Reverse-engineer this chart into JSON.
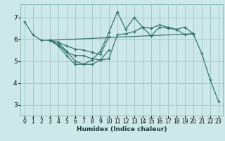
{
  "xlabel": "Humidex (Indice chaleur)",
  "bg_color": "#cce8e8",
  "grid_color": "#a8c8c8",
  "line_color": "#2d7068",
  "xlim": [
    -0.5,
    23.5
  ],
  "ylim": [
    2.5,
    7.6
  ],
  "xticks": [
    0,
    1,
    2,
    3,
    4,
    5,
    6,
    7,
    8,
    9,
    10,
    11,
    12,
    13,
    14,
    15,
    16,
    17,
    18,
    19,
    20,
    21,
    22,
    23
  ],
  "yticks": [
    3,
    4,
    5,
    6,
    7
  ],
  "lines": [
    {
      "x": [
        0,
        1,
        2,
        3,
        4,
        5,
        6,
        7,
        8,
        9,
        10,
        11,
        12,
        13,
        14,
        15,
        16,
        17,
        18,
        19,
        20,
        21,
        22,
        23
      ],
      "y": [
        6.8,
        6.2,
        5.95,
        5.95,
        5.85,
        5.45,
        5.0,
        4.85,
        5.05,
        5.45,
        6.3,
        7.25,
        6.45,
        7.0,
        6.55,
        6.15,
        6.55,
        6.5,
        6.45,
        6.2,
        6.25,
        5.35,
        4.15,
        3.15
      ]
    },
    {
      "x": [
        3,
        4,
        5,
        6,
        7,
        8,
        9,
        10,
        11,
        12,
        13,
        14,
        15,
        16,
        17,
        18,
        19,
        20
      ],
      "y": [
        5.95,
        5.75,
        5.4,
        5.25,
        5.25,
        5.1,
        5.05,
        5.1,
        6.2,
        6.25,
        6.35,
        6.55,
        6.5,
        6.65,
        6.55,
        6.45,
        6.55,
        6.25
      ]
    },
    {
      "x": [
        3,
        4,
        5,
        6,
        7,
        8,
        9,
        10
      ],
      "y": [
        5.95,
        5.7,
        5.25,
        4.85,
        4.85,
        4.85,
        5.05,
        5.5
      ]
    },
    {
      "x": [
        3,
        4,
        5,
        6,
        7,
        8,
        9,
        10
      ],
      "y": [
        5.95,
        5.85,
        5.7,
        5.55,
        5.5,
        5.4,
        5.3,
        6.1
      ]
    },
    {
      "x": [
        3,
        20
      ],
      "y": [
        5.95,
        6.25
      ]
    }
  ]
}
